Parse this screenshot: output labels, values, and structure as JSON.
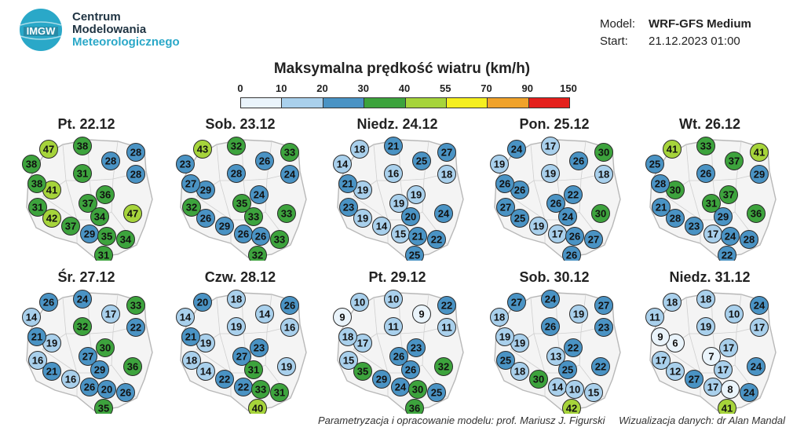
{
  "logo": {
    "badge": "IMGW",
    "line1": "Centrum",
    "line2": "Modelowania",
    "line3": "Meteorologicznego"
  },
  "model": {
    "label": "Model:",
    "value": "WRF-GFS Medium",
    "start_label": "Start:",
    "start_value": "21.12.2023 01:00"
  },
  "title": "Maksymalna prędkość wiatru (km/h)",
  "scale": {
    "ticks": [
      "0",
      "10",
      "20",
      "30",
      "40",
      "55",
      "70",
      "90",
      "150"
    ],
    "colors": [
      "#eaf4fb",
      "#a9d0ec",
      "#4a93c4",
      "#3da33d",
      "#a6d43b",
      "#f5ef1f",
      "#f0a22a",
      "#e4201c"
    ]
  },
  "days": [
    {
      "label": "Pt. 22.12",
      "values": [
        47,
        38,
        28,
        38,
        28,
        31,
        28,
        41,
        38,
        31,
        36,
        37,
        47,
        42,
        34,
        37,
        29,
        35,
        34,
        31
      ]
    },
    {
      "label": "Sob. 23.12",
      "values": [
        43,
        32,
        33,
        23,
        24,
        28,
        26,
        29,
        27,
        32,
        24,
        35,
        33,
        26,
        33,
        29,
        26,
        26,
        33,
        32
      ]
    },
    {
      "label": "Niedz. 24.12",
      "values": [
        18,
        21,
        27,
        14,
        18,
        16,
        25,
        19,
        21,
        23,
        19,
        19,
        24,
        19,
        20,
        14,
        15,
        21,
        22,
        25
      ]
    },
    {
      "label": "Pon. 25.12",
      "values": [
        24,
        17,
        30,
        19,
        18,
        19,
        26,
        26,
        26,
        27,
        22,
        26,
        30,
        25,
        24,
        19,
        17,
        26,
        27,
        26
      ]
    },
    {
      "label": "Wt. 26.12",
      "values": [
        41,
        33,
        41,
        25,
        29,
        26,
        37,
        30,
        28,
        21,
        37,
        31,
        36,
        28,
        29,
        23,
        17,
        24,
        28,
        22
      ]
    },
    {
      "label": "Śr. 27.12",
      "values": [
        26,
        24,
        33,
        14,
        22,
        32,
        17,
        19,
        21,
        16,
        30,
        27,
        36,
        21,
        29,
        16,
        26,
        20,
        26,
        35
      ]
    },
    {
      "label": "Czw. 28.12",
      "values": [
        20,
        18,
        26,
        14,
        16,
        19,
        14,
        19,
        21,
        18,
        23,
        27,
        19,
        14,
        31,
        22,
        22,
        33,
        31,
        40
      ]
    },
    {
      "label": "Pt. 29.12",
      "values": [
        10,
        10,
        22,
        9,
        11,
        11,
        9,
        17,
        18,
        15,
        23,
        26,
        32,
        35,
        26,
        29,
        24,
        30,
        25,
        36
      ]
    },
    {
      "label": "Sob. 30.12",
      "values": [
        27,
        24,
        27,
        18,
        23,
        26,
        19,
        19,
        19,
        25,
        22,
        13,
        22,
        18,
        25,
        30,
        14,
        10,
        15,
        42
      ]
    },
    {
      "label": "Niedz. 31.12",
      "values": [
        18,
        18,
        24,
        11,
        17,
        19,
        10,
        6,
        9,
        17,
        17,
        7,
        24,
        12,
        17,
        27,
        17,
        8,
        24,
        41
      ]
    }
  ],
  "footer": {
    "left": "Parametryzacja i opracowanie modelu: prof. Mariusz J. Figurski",
    "right": "Wizualizacja danych: dr Alan Mandal"
  }
}
